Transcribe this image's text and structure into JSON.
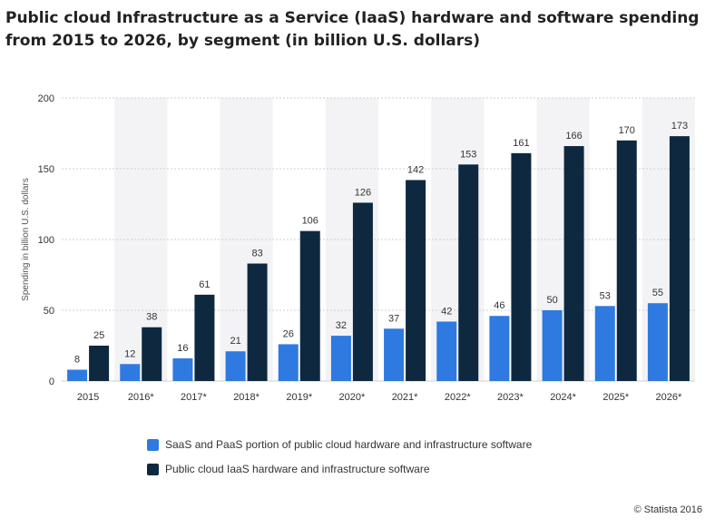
{
  "title": "Public cloud Infrastructure as a Service (IaaS) hardware and software spending from 2015 to 2026, by segment (in billion U.S. dollars)",
  "credit": "© Statista 2016",
  "colors": {
    "series1": "#2e7ae0",
    "series2": "#0e2840",
    "band": "#f3f3f5",
    "grid": "#cfcfcf",
    "text": "#333333"
  },
  "chart_data": {
    "type": "bar",
    "title": "Public cloud Infrastructure as a Service (IaaS) hardware and software spending from 2015 to 2026, by segment (in billion U.S. dollars)",
    "xlabel": "",
    "ylabel": "Spending in billion U.S. dollars",
    "ylim": [
      0,
      200
    ],
    "yticks": [
      0,
      50,
      100,
      150,
      200
    ],
    "grid": true,
    "legend_position": "bottom",
    "categories": [
      "2015",
      "2016*",
      "2017*",
      "2018*",
      "2019*",
      "2020*",
      "2021*",
      "2022*",
      "2023*",
      "2024*",
      "2025*",
      "2026*"
    ],
    "series": [
      {
        "name": "SaaS and PaaS portion of public cloud hardware and infrastructure software",
        "color": "#2e7ae0",
        "values": [
          8,
          12,
          16,
          21,
          26,
          32,
          37,
          42,
          46,
          50,
          53,
          55
        ]
      },
      {
        "name": "Public cloud IaaS hardware and infrastructure software",
        "color": "#0e2840",
        "values": [
          25,
          38,
          61,
          83,
          106,
          126,
          142,
          153,
          161,
          166,
          170,
          173
        ]
      }
    ]
  }
}
